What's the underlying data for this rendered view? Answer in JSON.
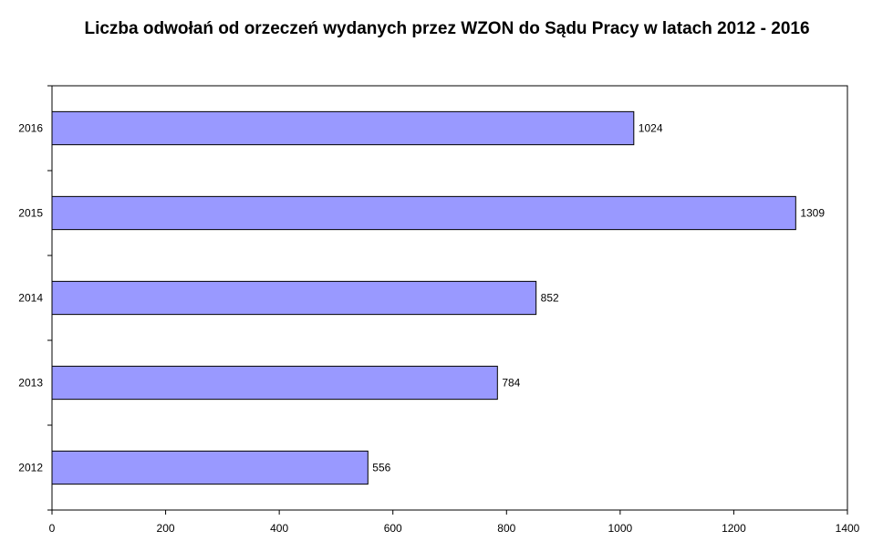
{
  "chart_data": {
    "type": "bar",
    "orientation": "horizontal",
    "title": "Liczba odwołań od orzeczeń wydanych przez WZON do Sądu Pracy w latach 2012 - 2016",
    "categories": [
      "2012",
      "2013",
      "2014",
      "2015",
      "2016"
    ],
    "values": [
      556,
      784,
      852,
      1309,
      1024
    ],
    "data_labels": [
      "556",
      "784",
      "852",
      "1309",
      "1024"
    ],
    "xlim": [
      0,
      1400
    ],
    "x_ticks": [
      0,
      200,
      400,
      600,
      800,
      1000,
      1200,
      1400
    ],
    "xlabel": "",
    "ylabel": "",
    "grid": false,
    "legend": "none",
    "colors": {
      "bar_fill": "#9999ff",
      "bar_stroke": "#000000",
      "axis": "#000000"
    }
  }
}
